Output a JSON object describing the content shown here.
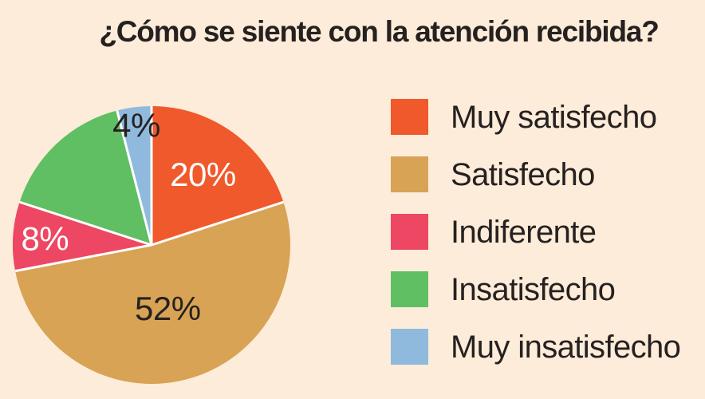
{
  "page": {
    "background_color": "#fcecd9",
    "text_color": "#262120"
  },
  "chart_data": {
    "type": "pie",
    "title": "¿Cómo se siente con la atención recibida?",
    "direction": "clockwise",
    "start_angle_deg": 0,
    "legend_position": "right",
    "divider_color": "#ffffff",
    "slices": [
      {
        "label": "Muy satisfecho",
        "value": 20,
        "pct_label": "20%",
        "color": "#f0592b",
        "pct_label_color": "#ffffff",
        "pct_label_radius": 0.63
      },
      {
        "label": "Satisfecho",
        "value": 52,
        "pct_label": "52%",
        "color": "#d8a355",
        "pct_label_color": "#262120",
        "pct_label_radius": 0.47
      },
      {
        "label": "Indiferente",
        "value": 8,
        "pct_label": "8%",
        "color": "#ee4763",
        "pct_label_color": "#ffffff",
        "pct_label_radius": 0.77
      },
      {
        "label": "Insatisfecho",
        "value": 16,
        "pct_label": "",
        "color": "#5fbf62",
        "pct_label_color": "",
        "pct_label_radius": 0
      },
      {
        "label": "Muy insatisfecho",
        "value": 4,
        "pct_label": "4%",
        "color": "#8fbadd",
        "pct_label_color": "#262120",
        "pct_label_radius": 0.87
      }
    ]
  }
}
